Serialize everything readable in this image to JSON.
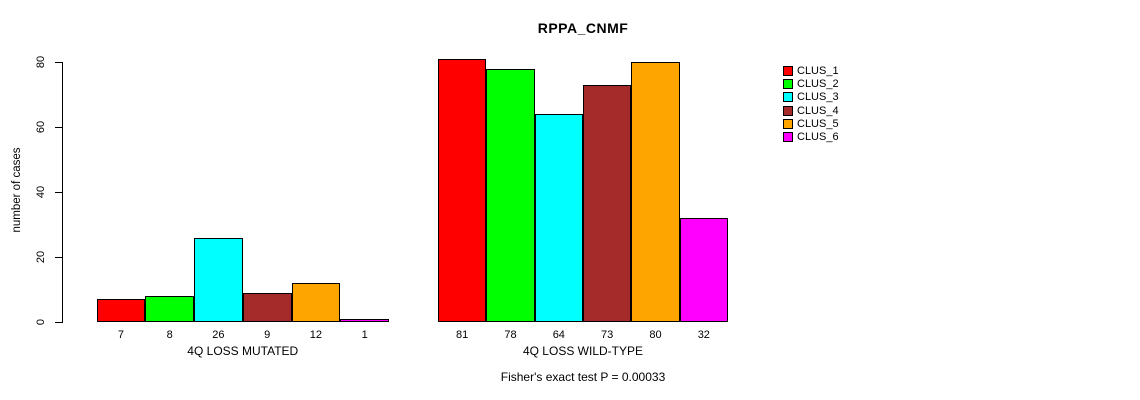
{
  "chart_data": {
    "type": "bar",
    "title": "RPPA_CNMF",
    "ylabel": "number of cases",
    "ylim": [
      0,
      80
    ],
    "yticks": [
      0,
      20,
      40,
      60,
      80
    ],
    "grid": false,
    "legend_position": "right",
    "series": [
      {
        "name": "CLUS_1",
        "color": "#FF0000"
      },
      {
        "name": "CLUS_2",
        "color": "#00FF00"
      },
      {
        "name": "CLUS_3",
        "color": "#00FFFF"
      },
      {
        "name": "CLUS_4",
        "color": "#A52A2A"
      },
      {
        "name": "CLUS_5",
        "color": "#FFA500"
      },
      {
        "name": "CLUS_6",
        "color": "#FF00FF"
      }
    ],
    "groups": [
      {
        "label": "4Q LOSS MUTATED",
        "values": [
          7,
          8,
          26,
          9,
          12,
          1
        ]
      },
      {
        "label": "4Q LOSS WILD-TYPE",
        "values": [
          81,
          78,
          64,
          73,
          80,
          32
        ]
      }
    ],
    "footnote": "Fisher's exact test P = 0.00033"
  }
}
